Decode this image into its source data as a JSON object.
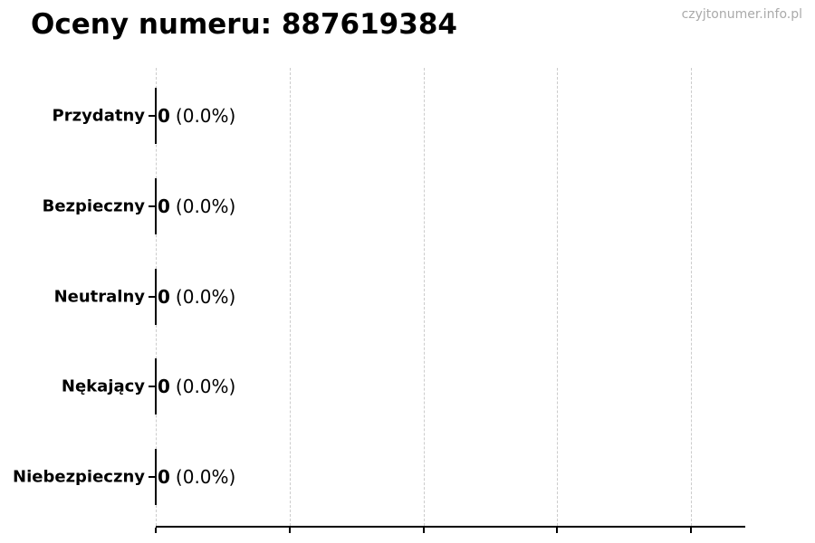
{
  "page": {
    "watermark": "czyjtonumer.info.pl"
  },
  "colors": {
    "background": "#ffffff",
    "text": "#000000",
    "watermark": "#aaaaaa",
    "gridline": "#cccccc",
    "axis": "#000000",
    "bar_edge": "#000000"
  },
  "chart_data": {
    "type": "bar",
    "orientation": "horizontal",
    "title": "Oceny numeru: 887619384",
    "categories": [
      "Przydatny",
      "Bezpieczny",
      "Neutralny",
      "Nękający",
      "Niebezpieczny"
    ],
    "values": [
      0,
      0,
      0,
      0,
      0
    ],
    "percentages": [
      0.0,
      0.0,
      0.0,
      0.0,
      0.0
    ],
    "value_labels": [
      "0",
      "0",
      "0",
      "0",
      "0"
    ],
    "percent_labels": [
      "(0.0%)",
      "(0.0%)",
      "(0.0%)",
      "(0.0%)",
      "(0.0%)"
    ],
    "xlabel": "",
    "ylabel": "",
    "xlim": [
      0,
      1
    ],
    "x_tick_labels": [],
    "grid": "vertical-dashed",
    "legend": "none"
  }
}
